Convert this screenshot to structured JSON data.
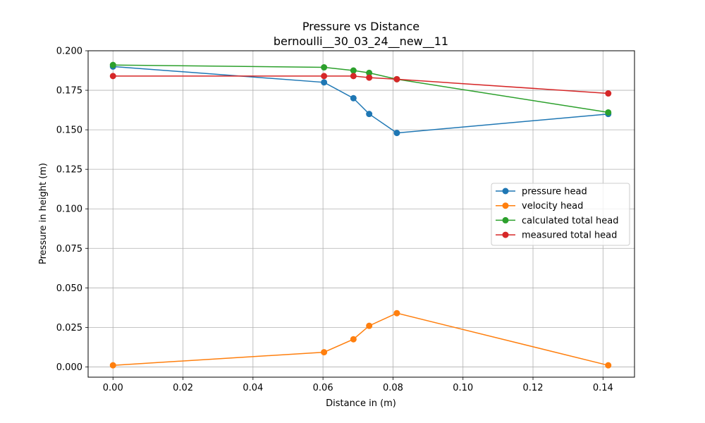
{
  "chart_data": {
    "type": "line",
    "title": "Pressure vs Distance",
    "subtitle": "bernoulli__30_03_24__new__11",
    "xlabel": "Distance in (m)",
    "ylabel": "Pressure in height (m)",
    "xlim": [
      -0.0071,
      0.149
    ],
    "ylim": [
      -0.0065,
      0.2
    ],
    "x_ticks": [
      "0.00",
      "0.02",
      "0.04",
      "0.06",
      "0.08",
      "0.10",
      "0.12",
      "0.14"
    ],
    "y_ticks": [
      "0.000",
      "0.025",
      "0.050",
      "0.075",
      "0.100",
      "0.125",
      "0.150",
      "0.175",
      "0.200"
    ],
    "grid": true,
    "legend_position": "center-right",
    "x": [
      0.0,
      0.0603,
      0.0687,
      0.0732,
      0.0811,
      0.1415
    ],
    "series": [
      {
        "name": "pressure head",
        "color": "#1f77b4",
        "values": [
          0.19,
          0.18,
          0.17,
          0.16,
          0.148,
          0.16
        ]
      },
      {
        "name": "velocity head",
        "color": "#ff7f0e",
        "values": [
          0.001,
          0.0093,
          0.0175,
          0.026,
          0.034,
          0.001
        ]
      },
      {
        "name": "calculated total head",
        "color": "#2ca02c",
        "values": [
          0.191,
          0.1895,
          0.1875,
          0.186,
          0.182,
          0.161
        ]
      },
      {
        "name": "measured total head",
        "color": "#d62728",
        "values": [
          0.184,
          0.184,
          0.184,
          0.183,
          0.182,
          0.173
        ]
      }
    ]
  }
}
